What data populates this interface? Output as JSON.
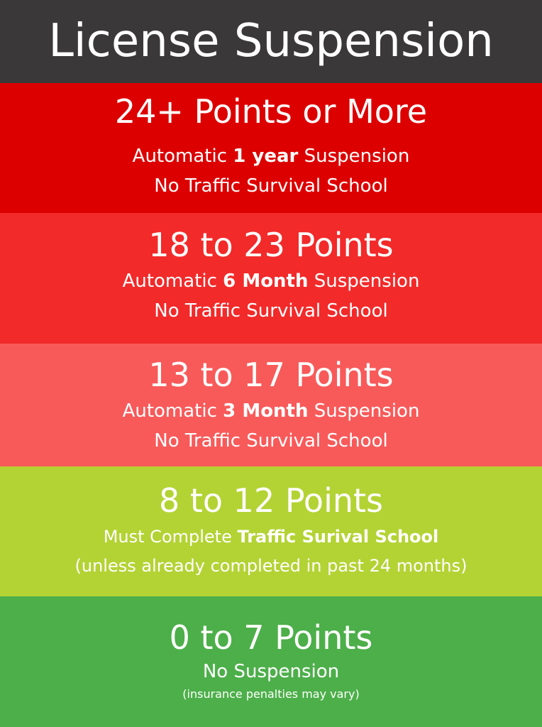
{
  "title": "License Suspension",
  "tiers": [
    {
      "heading": "24+ Points or More",
      "line1_pre": "Automatic ",
      "line1_bold": "1 year",
      "line1_post": " Suspension",
      "line2": "No Traffic Survival School",
      "color": "#dd0000"
    },
    {
      "heading": "18 to 23 Points",
      "line1_pre": "Automatic ",
      "line1_bold": "6 Month",
      "line1_post": " Suspension",
      "line2": "No Traffic Survival School",
      "color": "#f22a2a"
    },
    {
      "heading": "13 to 17 Points",
      "line1_pre": "Automatic ",
      "line1_bold": "3 Month",
      "line1_post": " Suspension",
      "line2": "No Traffic Survival School",
      "color": "#f85a5a"
    },
    {
      "heading": "8 to 12 Points",
      "line1_pre": "Must Complete ",
      "line1_bold": "Traffic Surival School",
      "line1_post": "",
      "line2": "(unless already completed in past 24 months)",
      "color": "#b3d334"
    },
    {
      "heading": "0 to 7 Points",
      "line1": "No Suspension",
      "note": "(insurance penalties may vary)",
      "color": "#4daf4a"
    }
  ],
  "header_color": "#3a3838"
}
